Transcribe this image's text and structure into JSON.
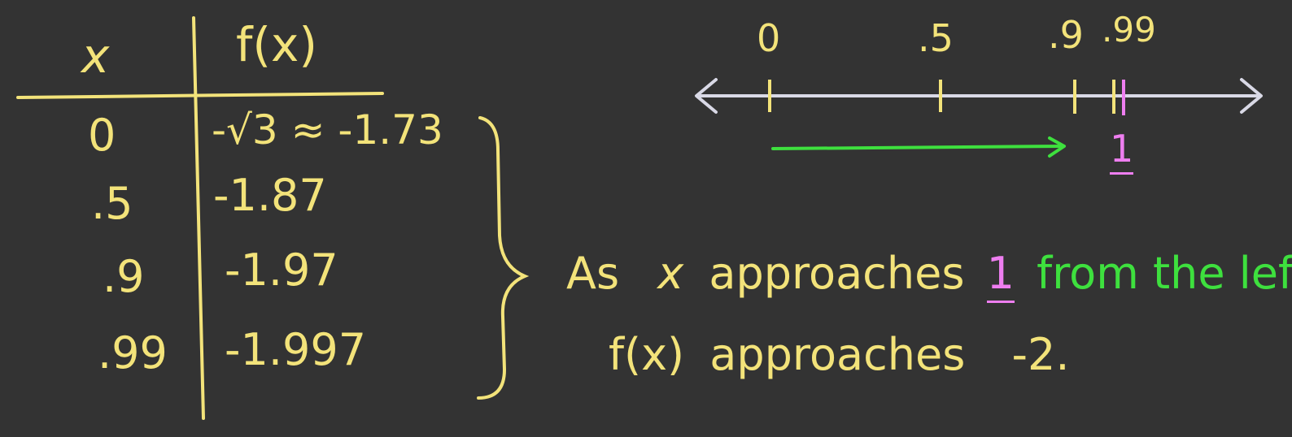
{
  "table": {
    "header_x": "x",
    "header_fx": "f(x)",
    "rows": [
      {
        "x": "0",
        "fx": "-√3 ≈ -1.73"
      },
      {
        "x": ".5",
        "fx": "-1.87"
      },
      {
        "x": ".9",
        "fx": "-1.97"
      },
      {
        "x": ".99",
        "fx": "-1.997"
      }
    ]
  },
  "number_line": {
    "ticks": [
      "0",
      ".5",
      ".9",
      ".99"
    ],
    "target_label": "1"
  },
  "statement": {
    "line1_a": "As",
    "line1_x": "x",
    "line1_b": "approaches",
    "line1_target": "1",
    "line1_direction": "from the left,",
    "line2_a": "f(x)",
    "line2_b": "approaches",
    "line2_limit": "-2."
  },
  "colors": {
    "background": "#333333",
    "chalk_yellow": "#f3e37a",
    "pink": "#ee7ef0",
    "green": "#3ee03e",
    "line_gray": "#d9d9e6"
  }
}
